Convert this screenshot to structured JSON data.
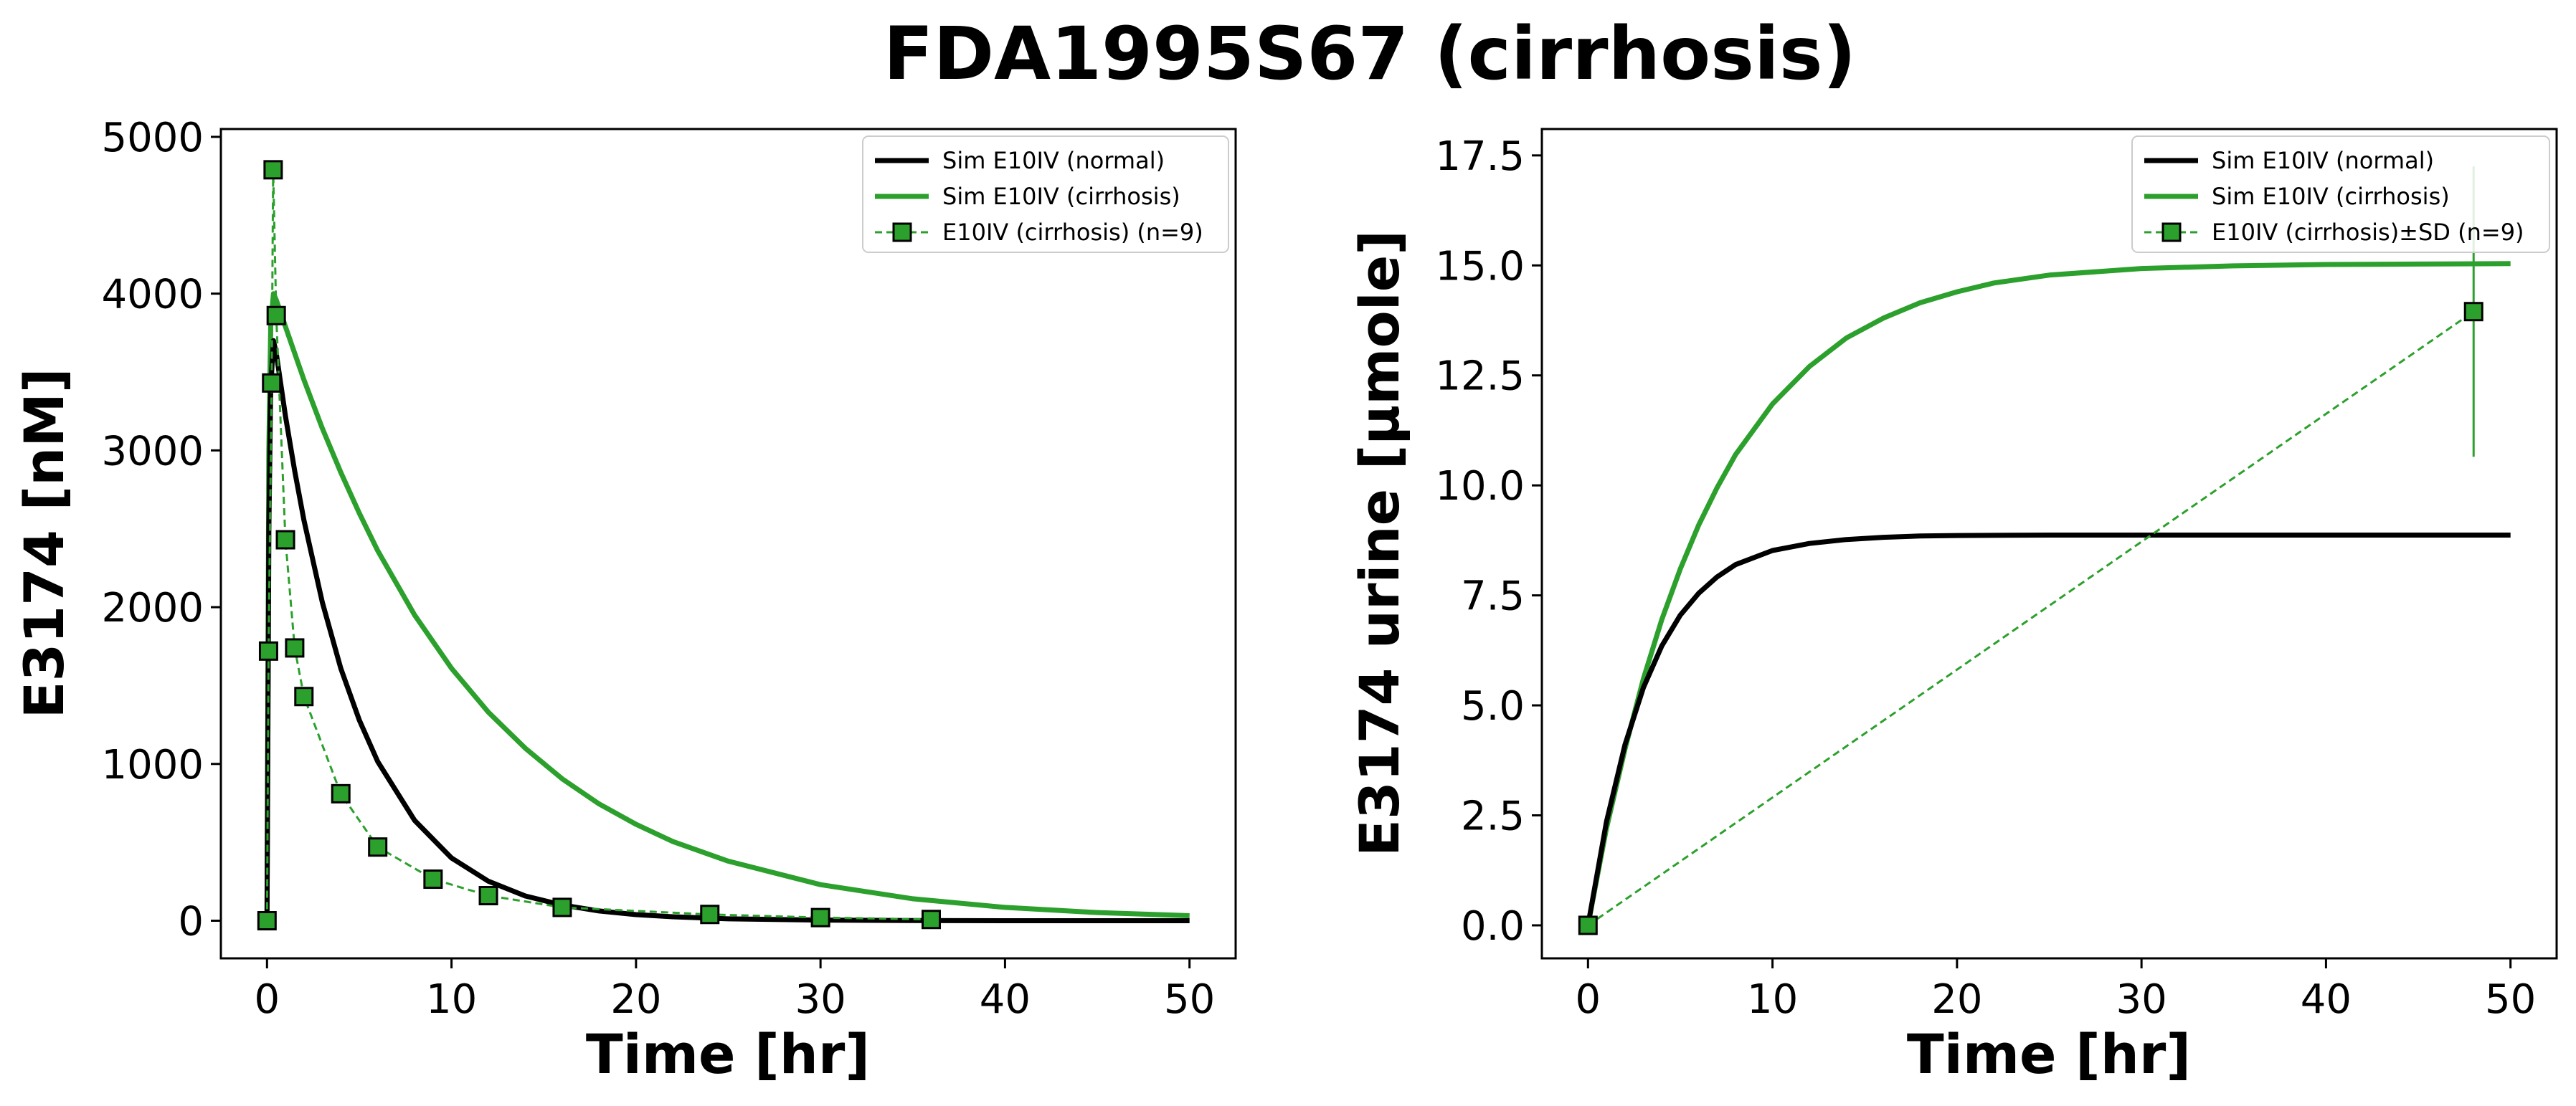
{
  "suptitle": "FDA1995S67 (cirrhosis)",
  "colors": {
    "normal": "#000000",
    "cirrhosis": "#2ca02c",
    "marker_edge": "#000000"
  },
  "chart_data": [
    {
      "type": "line",
      "xlabel": "Time [hr]",
      "ylabel": "E3174 [nM]",
      "xlim": [
        -2.5,
        52.5
      ],
      "ylim": [
        -240,
        5050
      ],
      "xticks": [
        0,
        10,
        20,
        30,
        40,
        50
      ],
      "xtick_labels": [
        "0",
        "10",
        "20",
        "30",
        "40",
        "50"
      ],
      "yticks": [
        0,
        1000,
        2000,
        3000,
        4000,
        5000
      ],
      "ytick_labels": [
        "0",
        "1000",
        "2000",
        "3000",
        "4000",
        "5000"
      ],
      "legend_position": "top-right",
      "legend": [
        "Sim E10IV (normal)",
        "Sim E10IV (cirrhosis)",
        "E10IV (cirrhosis) (n=9)"
      ],
      "sim_normal": {
        "x": [
          0,
          0.1,
          0.2,
          0.35,
          0.5,
          0.8,
          1,
          1.5,
          2,
          3,
          4,
          5,
          6,
          8,
          10,
          12,
          14,
          16,
          18,
          20,
          22,
          25,
          30,
          35,
          40,
          45,
          50
        ],
        "y": [
          0,
          2500,
          3400,
          3700,
          3620,
          3380,
          3220,
          2870,
          2555,
          2030,
          1610,
          1280,
          1015,
          640,
          400,
          252,
          158,
          100,
          62,
          39,
          25,
          12,
          4,
          1,
          0,
          0,
          0
        ]
      },
      "sim_cirrhosis": {
        "x": [
          0,
          0.1,
          0.2,
          0.35,
          0.5,
          0.8,
          1,
          1.5,
          2,
          3,
          4,
          5,
          6,
          8,
          10,
          12,
          14,
          16,
          18,
          20,
          22,
          25,
          30,
          35,
          40,
          45,
          50
        ],
        "y": [
          0,
          3000,
          3800,
          4000,
          3960,
          3860,
          3790,
          3620,
          3450,
          3140,
          2860,
          2600,
          2360,
          1950,
          1610,
          1330,
          1100,
          905,
          745,
          615,
          505,
          380,
          230,
          140,
          85,
          52,
          32
        ]
      },
      "observed_cirrhosis": {
        "x": [
          0,
          0.083,
          0.25,
          0.333,
          0.5,
          1,
          1.5,
          2,
          4,
          6,
          9,
          12,
          16,
          24,
          30,
          36
        ],
        "y": [
          0,
          1720,
          3430,
          4790,
          3860,
          2430,
          1740,
          1430,
          810,
          470,
          265,
          160,
          85,
          40,
          20,
          8
        ]
      }
    },
    {
      "type": "line",
      "xlabel": "Time [hr]",
      "ylabel": "E3174 urine [µmole]",
      "xlim": [
        -2.5,
        52.5
      ],
      "ylim": [
        -0.75,
        18.1
      ],
      "xticks": [
        0,
        10,
        20,
        30,
        40,
        50
      ],
      "xtick_labels": [
        "0",
        "10",
        "20",
        "30",
        "40",
        "50"
      ],
      "yticks": [
        0,
        2.5,
        5,
        7.5,
        10,
        12.5,
        15,
        17.5
      ],
      "ytick_labels": [
        "0.0",
        "2.5",
        "5.0",
        "7.5",
        "10.0",
        "12.5",
        "15.0",
        "17.5"
      ],
      "legend_position": "top-right",
      "legend": [
        "Sim E10IV (normal)",
        "Sim E10IV (cirrhosis)",
        "E10IV (cirrhosis)±SD (n=9)"
      ],
      "sim_normal": {
        "x": [
          0,
          1,
          2,
          3,
          4,
          5,
          6,
          7,
          8,
          10,
          12,
          14,
          16,
          18,
          20,
          25,
          30,
          35,
          40,
          45,
          50
        ],
        "y": [
          0,
          2.35,
          4.1,
          5.4,
          6.35,
          7.05,
          7.55,
          7.92,
          8.2,
          8.52,
          8.68,
          8.77,
          8.82,
          8.85,
          8.86,
          8.87,
          8.87,
          8.87,
          8.87,
          8.87,
          8.87
        ]
      },
      "sim_cirrhosis": {
        "x": [
          0,
          1,
          2,
          3,
          4,
          5,
          6,
          7,
          8,
          10,
          12,
          14,
          16,
          18,
          20,
          22,
          25,
          30,
          35,
          40,
          45,
          50
        ],
        "y": [
          0,
          2.2,
          4.0,
          5.6,
          6.95,
          8.1,
          9.1,
          9.95,
          10.7,
          11.85,
          12.7,
          13.35,
          13.8,
          14.15,
          14.4,
          14.6,
          14.78,
          14.93,
          14.99,
          15.02,
          15.03,
          15.04
        ]
      },
      "observed_cirrhosis": {
        "x": [
          0,
          48
        ],
        "y": [
          0,
          13.95
        ],
        "sd": [
          0,
          3.3
        ]
      }
    }
  ]
}
